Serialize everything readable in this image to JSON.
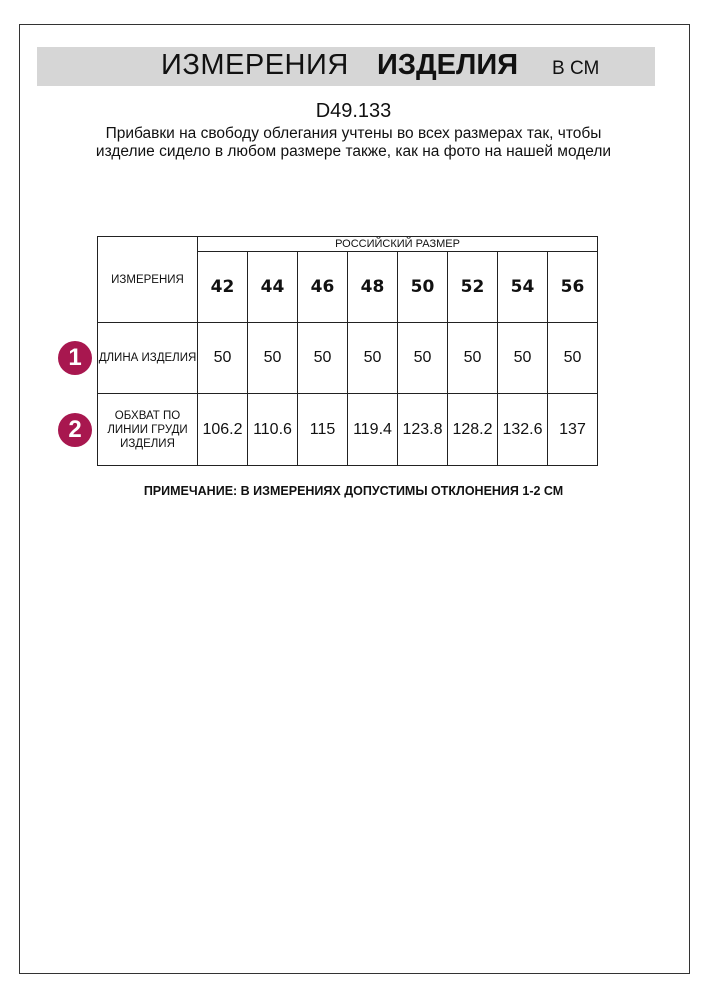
{
  "header": {
    "title_regular": "ИЗМЕРЕНИЯ",
    "title_bold": "ИЗДЕЛИЯ",
    "unit": "В СМ"
  },
  "product_code": "D49.133",
  "description": "Прибавки на свободу облегания учтены во всех размерах так, чтобы изделие сидело в любом размере также, как на фото на нашей модели",
  "table": {
    "row_header": "ИЗМЕРЕНИЯ",
    "group_header": "РОССИЙСКИЙ РАЗМЕР",
    "sizes": [
      "42",
      "44",
      "46",
      "48",
      "50",
      "52",
      "54",
      "56"
    ],
    "rows": [
      {
        "badge": "1",
        "label": "ДЛИНА ИЗДЕЛИЯ",
        "values": [
          "50",
          "50",
          "50",
          "50",
          "50",
          "50",
          "50",
          "50"
        ]
      },
      {
        "badge": "2",
        "label": "ОБХВАТ ПО ЛИНИИ ГРУДИ ИЗДЕЛИЯ",
        "values": [
          "106.2",
          "110.6",
          "115",
          "119.4",
          "123.8",
          "128.2",
          "132.6",
          "137"
        ]
      }
    ]
  },
  "note": "ПРИМЕЧАНИЕ: В ИЗМЕРЕНИЯХ ДОПУСТИМЫ ОТКЛОНЕНИЯ 1-2 СМ",
  "colors": {
    "badge": "#a8174f",
    "banner": "#d6d6d6"
  }
}
